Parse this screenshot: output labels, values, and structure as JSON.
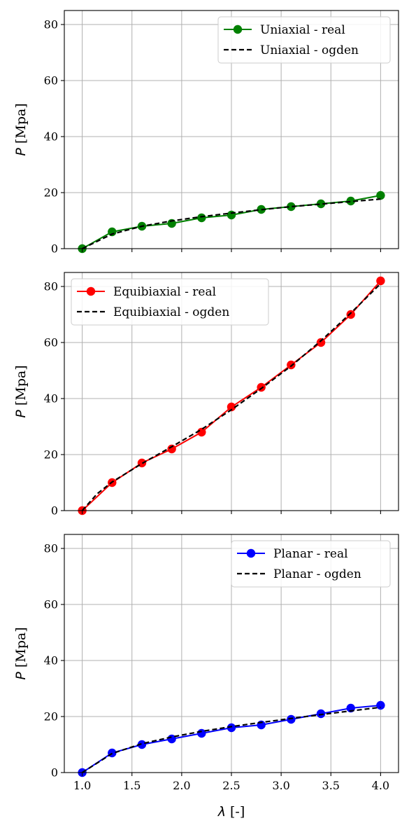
{
  "chart_data": [
    {
      "type": "line",
      "ylabel_symbol": "P",
      "ylabel_unit": "[Mpa]",
      "xlim": [
        0.82,
        4.18
      ],
      "ylim": [
        0,
        85
      ],
      "grid": true,
      "legend": "top-right",
      "series": [
        {
          "name": "Uniaxial - real",
          "color": "#008000",
          "style": "solid-marker",
          "x": [
            1.0,
            1.3,
            1.6,
            1.9,
            2.2,
            2.5,
            2.8,
            3.1,
            3.4,
            3.7,
            4.0
          ],
          "y": [
            0,
            6,
            8,
            9,
            11,
            12,
            14,
            15,
            16,
            17,
            19
          ]
        },
        {
          "name": "Uniaxial - ogden",
          "color": "#000000",
          "style": "dashed",
          "x": [
            1.0,
            1.3,
            1.6,
            1.9,
            2.2,
            2.5,
            2.8,
            3.1,
            3.4,
            3.7,
            4.0
          ],
          "y": [
            0,
            5.2,
            8.0,
            9.9,
            11.4,
            12.7,
            13.9,
            15.0,
            15.9,
            16.8,
            17.7
          ]
        }
      ]
    },
    {
      "type": "line",
      "ylabel_symbol": "P",
      "ylabel_unit": "[Mpa]",
      "xlim": [
        0.82,
        4.18
      ],
      "ylim": [
        0,
        85
      ],
      "grid": true,
      "legend": "top-left",
      "series": [
        {
          "name": "Equibiaxial - real",
          "color": "#ff0000",
          "style": "solid-marker",
          "x": [
            1.0,
            1.3,
            1.6,
            1.9,
            2.2,
            2.5,
            2.8,
            3.1,
            3.4,
            3.7,
            4.0
          ],
          "y": [
            0,
            10,
            17,
            22,
            28,
            37,
            44,
            52,
            60,
            70,
            82
          ]
        },
        {
          "name": "Equibiaxial - ogden",
          "color": "#000000",
          "style": "dashed",
          "x": [
            1.0,
            1.15,
            1.3,
            1.6,
            1.9,
            2.2,
            2.5,
            2.8,
            3.1,
            3.4,
            3.7,
            4.0
          ],
          "y": [
            0,
            6.0,
            10.2,
            16.8,
            22.8,
            29.0,
            36.0,
            43.6,
            51.6,
            60.6,
            70.5,
            81.0
          ]
        }
      ]
    },
    {
      "type": "line",
      "ylabel_symbol": "P",
      "ylabel_unit": "[Mpa]",
      "xlabel_symbol": "λ",
      "xlabel_unit": "[-]",
      "xlim": [
        0.82,
        4.18
      ],
      "ylim": [
        0,
        85
      ],
      "grid": true,
      "legend": "top-right",
      "series": [
        {
          "name": "Planar - real",
          "color": "#0000ff",
          "style": "solid-marker",
          "x": [
            1.0,
            1.3,
            1.6,
            1.9,
            2.2,
            2.5,
            2.8,
            3.1,
            3.4,
            3.7,
            4.0
          ],
          "y": [
            0,
            7,
            10,
            12,
            14,
            16,
            17,
            19,
            21,
            23,
            24
          ]
        },
        {
          "name": "Planar - ogden",
          "color": "#000000",
          "style": "dashed",
          "x": [
            1.0,
            1.3,
            1.6,
            1.9,
            2.2,
            2.5,
            2.8,
            3.1,
            3.4,
            3.7,
            4.0
          ],
          "y": [
            0,
            6.8,
            10.3,
            12.7,
            14.7,
            16.4,
            17.9,
            19.3,
            20.7,
            22.0,
            23.3
          ]
        }
      ]
    }
  ],
  "x_ticks": [
    "1.0",
    "1.5",
    "2.0",
    "2.5",
    "3.0",
    "3.5",
    "4.0"
  ],
  "y_ticks": [
    "0",
    "20",
    "40",
    "60",
    "80"
  ]
}
